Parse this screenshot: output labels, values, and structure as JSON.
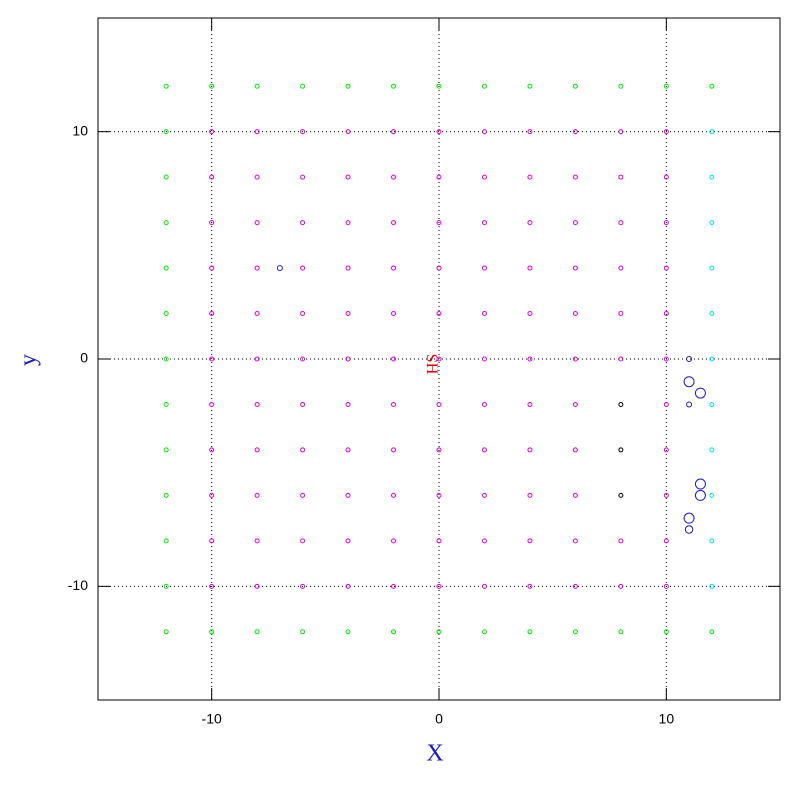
{
  "chart_data": {
    "type": "scatter",
    "xlabel": "X",
    "ylabel": "y",
    "annotation": "HS",
    "xlim": [
      -15,
      15
    ],
    "ylim": [
      -15,
      15
    ],
    "xticks": [
      -10,
      0,
      10
    ],
    "yticks": [
      -10,
      0,
      10
    ],
    "grid": true,
    "series": [
      {
        "color": "#00ee00",
        "x": [
          -12,
          -10,
          -8,
          -6,
          -4,
          -2,
          0,
          2,
          4,
          6,
          8,
          10,
          12,
          -12,
          -10,
          -8,
          -6,
          -4,
          -2,
          0,
          2,
          4,
          6,
          8,
          10,
          12,
          -12,
          -12,
          -12,
          -12,
          -12,
          -12,
          -12,
          -12,
          -12,
          -12,
          -12
        ],
        "y": [
          12,
          12,
          12,
          12,
          12,
          12,
          12,
          12,
          12,
          12,
          12,
          12,
          12,
          -12,
          -12,
          -12,
          -12,
          -12,
          -12,
          -12,
          -12,
          -12,
          -12,
          -12,
          -12,
          -12,
          10,
          8,
          6,
          4,
          2,
          0,
          -2,
          -4,
          -6,
          -8,
          -10
        ]
      },
      {
        "color": "#00e5e5",
        "x": [
          12,
          12,
          12,
          12,
          12,
          12,
          12,
          12,
          12,
          12,
          12
        ],
        "y": [
          10,
          8,
          6,
          4,
          2,
          0,
          -2,
          -4,
          -6,
          -8,
          -10
        ]
      },
      {
        "color": "#e000e0",
        "x": [
          -10,
          -8,
          -6,
          -4,
          -2,
          0,
          2,
          4,
          6,
          8,
          10,
          -10,
          -8,
          -6,
          -4,
          -2,
          0,
          2,
          4,
          6,
          8,
          10,
          -10,
          -8,
          -6,
          -4,
          -2,
          0,
          2,
          4,
          6,
          8,
          10,
          -10,
          -8,
          -6,
          -4,
          -2,
          0,
          2,
          4,
          6,
          8,
          10,
          -10,
          -8,
          -6,
          -4,
          -2,
          0,
          2,
          4,
          6,
          8,
          10,
          -10,
          -8,
          -6,
          -4,
          -2,
          0,
          2,
          4,
          6,
          8,
          10,
          -10,
          -8,
          -6,
          -4,
          -2,
          0,
          2,
          4,
          6,
          10,
          -10,
          -8,
          -6,
          -4,
          -2,
          0,
          2,
          4,
          6,
          10,
          -10,
          -8,
          -6,
          -4,
          -2,
          0,
          2,
          4,
          6,
          10,
          -10,
          -8,
          -6,
          -4,
          -2,
          0,
          2,
          4,
          6,
          8,
          10,
          -10,
          -8,
          -6,
          -4,
          -2,
          0,
          2,
          4,
          6,
          8,
          10
        ],
        "y": [
          10,
          10,
          10,
          10,
          10,
          10,
          10,
          10,
          10,
          10,
          10,
          8,
          8,
          8,
          8,
          8,
          8,
          8,
          8,
          8,
          8,
          8,
          6,
          6,
          6,
          6,
          6,
          6,
          6,
          6,
          6,
          6,
          6,
          4,
          4,
          4,
          4,
          4,
          4,
          4,
          4,
          4,
          4,
          4,
          2,
          2,
          2,
          2,
          2,
          2,
          2,
          2,
          2,
          2,
          2,
          0,
          0,
          0,
          0,
          0,
          0,
          0,
          0,
          0,
          0,
          0,
          -2,
          -2,
          -2,
          -2,
          -2,
          -2,
          -2,
          -2,
          -2,
          -2,
          -4,
          -4,
          -4,
          -4,
          -4,
          -4,
          -4,
          -4,
          -4,
          -4,
          -6,
          -6,
          -6,
          -6,
          -6,
          -6,
          -6,
          -6,
          -6,
          -6,
          -8,
          -8,
          -8,
          -8,
          -8,
          -8,
          -8,
          -8,
          -8,
          -8,
          -8,
          -10,
          -10,
          -10,
          -10,
          -10,
          -10,
          -10,
          -10,
          -10,
          -10,
          -10
        ]
      },
      {
        "color": "#000000",
        "x": [
          8,
          8,
          8
        ],
        "y": [
          -2,
          -4,
          -6
        ]
      },
      {
        "color": "#1a1acc",
        "x": [
          11,
          11,
          11.5,
          11,
          11.5,
          11.5,
          11,
          11,
          -7
        ],
        "y": [
          0,
          -1,
          -1.5,
          -2,
          -5.5,
          -6,
          -7,
          -7.5,
          4
        ],
        "sizes": [
          1,
          2,
          2,
          1,
          2,
          2,
          2,
          1.5,
          1
        ]
      }
    ]
  }
}
